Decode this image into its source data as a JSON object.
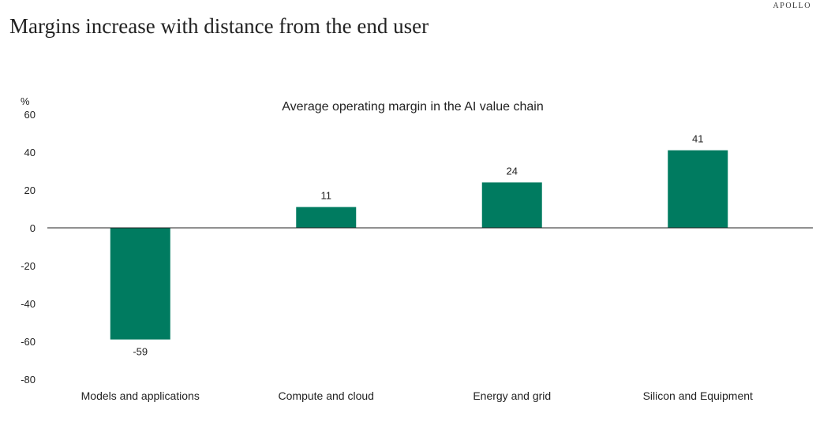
{
  "brand": "APOLLO",
  "headline": "Margins increase with distance from the end user",
  "colors": {
    "bar": "#007b60",
    "axis": "#222222"
  },
  "chart_data": {
    "type": "bar",
    "title": "Average operating margin in the AI value chain",
    "ylabel": "%",
    "xlabel": "",
    "ylim": [
      -80,
      60
    ],
    "yticks": [
      60,
      40,
      20,
      0,
      -20,
      -40,
      -60,
      -80
    ],
    "categories": [
      "Models and applications",
      "Compute and cloud",
      "Energy and grid",
      "Silicon and Equipment"
    ],
    "values": [
      -59,
      11,
      24,
      41
    ],
    "data_labels": [
      "-59",
      "11",
      "24",
      "41"
    ],
    "grid": false,
    "legend": "none"
  }
}
